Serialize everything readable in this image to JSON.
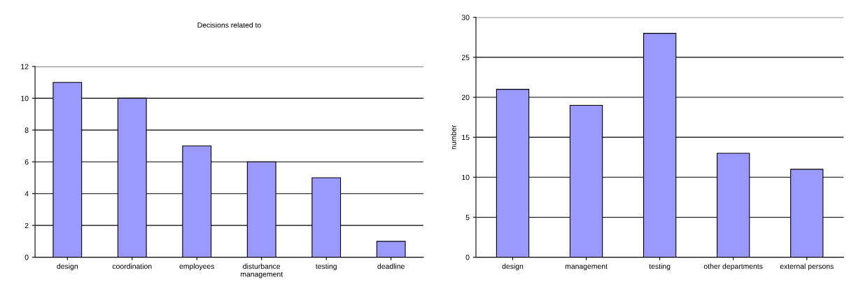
{
  "chart_data": [
    {
      "type": "bar",
      "title": "Decisions related to",
      "categories": [
        "design",
        "coordination",
        "employees",
        "disturbance management",
        "testing",
        "deadline"
      ],
      "values": [
        11,
        10,
        7,
        6,
        5,
        1
      ],
      "color": "#9999ff",
      "ylim": [
        0,
        12
      ],
      "yticks": [
        0,
        2,
        4,
        6,
        8,
        10,
        12
      ],
      "grid": "y",
      "legend": false
    },
    {
      "type": "bar",
      "ylabel": "number",
      "categories": [
        "design",
        "management",
        "testing",
        "other departments",
        "external persons"
      ],
      "values": [
        21,
        19,
        28,
        13,
        11
      ],
      "color": "#9999ff",
      "ylim": [
        0,
        30
      ],
      "yticks": [
        0,
        5,
        10,
        15,
        20,
        25,
        30
      ],
      "grid": "y",
      "legend": false
    }
  ]
}
